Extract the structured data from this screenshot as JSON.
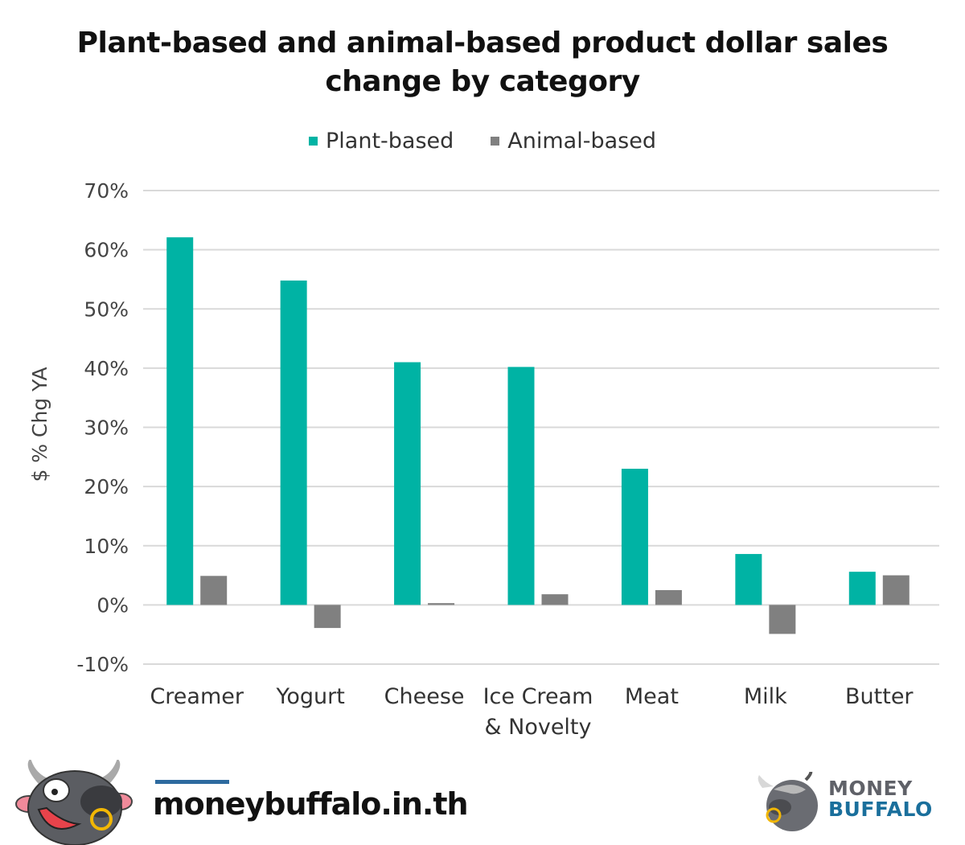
{
  "title_lines": [
    "Plant-based and animal-based product dollar sales",
    "change by category"
  ],
  "legend": [
    {
      "label": "Plant-based",
      "color": "#00b3a4"
    },
    {
      "label": "Animal-based",
      "color": "#808080"
    }
  ],
  "chart_data": {
    "type": "bar",
    "title": "Plant-based and animal-based product dollar sales change by category",
    "xlabel": "",
    "ylabel": "$ % Chg YA",
    "ylim": [
      -10,
      70
    ],
    "yticks": [
      70,
      60,
      50,
      40,
      30,
      20,
      10,
      0,
      -10
    ],
    "ytick_labels": [
      "70%",
      "60%",
      "50%",
      "40%",
      "30%",
      "20%",
      "10%",
      "0%",
      "-10%"
    ],
    "grid": true,
    "legend_position": "top",
    "categories": [
      [
        "Creamer"
      ],
      [
        "Yogurt"
      ],
      [
        "Cheese"
      ],
      [
        "Ice Cream",
        "& Novelty"
      ],
      [
        "Meat"
      ],
      [
        "Milk"
      ],
      [
        "Butter"
      ]
    ],
    "series": [
      {
        "name": "Plant-based",
        "color": "#00b3a4",
        "values": [
          62.1,
          54.8,
          41.0,
          40.2,
          23.0,
          8.6,
          5.6
        ]
      },
      {
        "name": "Animal-based",
        "color": "#808080",
        "values": [
          4.9,
          -3.9,
          0.3,
          1.8,
          2.5,
          -4.9,
          5.0
        ]
      }
    ]
  },
  "footer": {
    "url": "moneybuffalo.in.th",
    "brand_line1": "MONEY",
    "brand_line2": "BUFFALO",
    "accent": "#2d6a9f"
  }
}
